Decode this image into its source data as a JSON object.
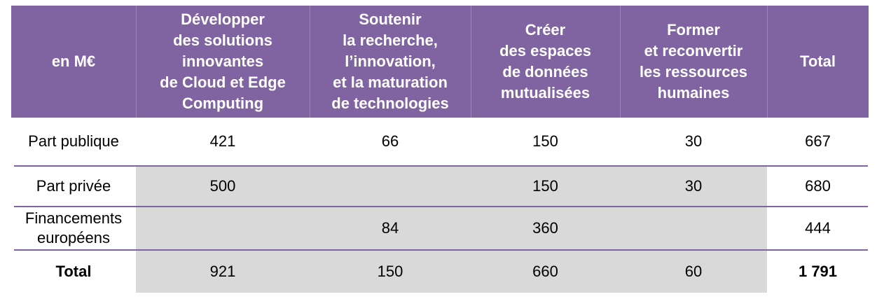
{
  "table": {
    "headers": [
      "en M€",
      "Développer\ndes solutions\ninnovantes\nde Cloud et Edge\nComputing",
      "Soutenir\nla recherche,\nl’innovation,\net la maturation\nde technologies",
      "Créer\ndes espaces\nde données\nmutualisées",
      "Former\net reconvertir\nles ressources\nhumaines",
      "Total"
    ],
    "rows": [
      {
        "label": "Part publique",
        "cells": [
          "421",
          "66",
          "150",
          "30",
          "667"
        ]
      },
      {
        "label": "Part privée",
        "cells": [
          "500",
          "",
          "150",
          "30",
          "680"
        ]
      },
      {
        "label": "Financements\neuropéens",
        "cells": [
          "",
          "84",
          "360",
          "",
          "444"
        ]
      },
      {
        "label": "Total",
        "cells": [
          "921",
          "150",
          "660",
          "60",
          "1 791"
        ]
      }
    ]
  },
  "colors": {
    "header_bg": "#8064a2",
    "header_text": "#ffffff",
    "shaded_cell": "#d9d9d9",
    "row_separator": "#8064a2"
  }
}
